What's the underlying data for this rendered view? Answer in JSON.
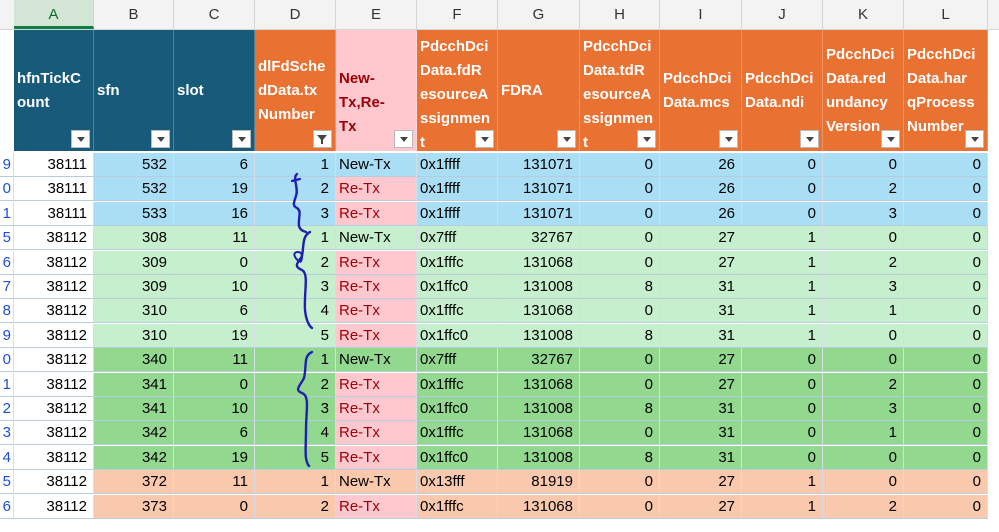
{
  "column_letters": [
    "A",
    "B",
    "C",
    "D",
    "E",
    "F",
    "G",
    "H",
    "I",
    "J",
    "K",
    "L"
  ],
  "active_column": "A",
  "headers": [
    {
      "text": "hfnTickC\nount",
      "style": "navy",
      "filtered": false
    },
    {
      "text": "sfn",
      "style": "navy",
      "filtered": false
    },
    {
      "text": "slot",
      "style": "navy",
      "filtered": false
    },
    {
      "text": "dlFdSche\ndData.tx\nNumber",
      "style": "orange",
      "filtered": true
    },
    {
      "text": "New-\nTx,Re-Tx",
      "style": "pink",
      "filtered": false
    },
    {
      "text": "PdcchDci\nData.fdR\nesourceA\nssignmen\nt",
      "style": "orange",
      "filtered": false
    },
    {
      "text": "FDRA",
      "style": "orange",
      "filtered": false
    },
    {
      "text": "PdcchDci\nData.tdR\nesourceA\nssignmen\nt",
      "style": "orange",
      "filtered": false
    },
    {
      "text": "PdcchDci\nData.mcs",
      "style": "orange",
      "filtered": false
    },
    {
      "text": "PdcchDci\nData.ndi",
      "style": "orange",
      "filtered": false
    },
    {
      "text": "PdcchDci\nData.red\nundancy\nVersion",
      "style": "orange",
      "filtered": false
    },
    {
      "text": "PdcchDci\nData.har\nqProcess\nNumber",
      "style": "orange",
      "filtered": false
    }
  ],
  "rows": [
    {
      "row_label": "9",
      "hfn": "38111",
      "sfn": "532",
      "slot": "6",
      "tx": "1",
      "type": "New-Tx",
      "fdra_hex": "0x1ffff",
      "fdra": "131071",
      "tdra": "0",
      "mcs": "26",
      "ndi": "0",
      "rv": "0",
      "harq": "0",
      "group_color": "#a9def5"
    },
    {
      "row_label": "0",
      "hfn": "38111",
      "sfn": "532",
      "slot": "19",
      "tx": "2",
      "type": "Re-Tx",
      "fdra_hex": "0x1ffff",
      "fdra": "131071",
      "tdra": "0",
      "mcs": "26",
      "ndi": "0",
      "rv": "2",
      "harq": "0",
      "group_color": "#a9def5"
    },
    {
      "row_label": "1",
      "hfn": "38111",
      "sfn": "533",
      "slot": "16",
      "tx": "3",
      "type": "Re-Tx",
      "fdra_hex": "0x1ffff",
      "fdra": "131071",
      "tdra": "0",
      "mcs": "26",
      "ndi": "0",
      "rv": "3",
      "harq": "0",
      "group_color": "#a9def5"
    },
    {
      "row_label": "5",
      "hfn": "38112",
      "sfn": "308",
      "slot": "11",
      "tx": "1",
      "type": "New-Tx",
      "fdra_hex": "0x7fff",
      "fdra": "32767",
      "tdra": "0",
      "mcs": "27",
      "ndi": "1",
      "rv": "0",
      "harq": "0",
      "group_color": "#c6efce"
    },
    {
      "row_label": "6",
      "hfn": "38112",
      "sfn": "309",
      "slot": "0",
      "tx": "2",
      "type": "Re-Tx",
      "fdra_hex": "0x1fffc",
      "fdra": "131068",
      "tdra": "0",
      "mcs": "27",
      "ndi": "1",
      "rv": "2",
      "harq": "0",
      "group_color": "#c6efce"
    },
    {
      "row_label": "7",
      "hfn": "38112",
      "sfn": "309",
      "slot": "10",
      "tx": "3",
      "type": "Re-Tx",
      "fdra_hex": "0x1ffc0",
      "fdra": "131008",
      "tdra": "8",
      "mcs": "31",
      "ndi": "1",
      "rv": "3",
      "harq": "0",
      "group_color": "#c6efce"
    },
    {
      "row_label": "8",
      "hfn": "38112",
      "sfn": "310",
      "slot": "6",
      "tx": "4",
      "type": "Re-Tx",
      "fdra_hex": "0x1fffc",
      "fdra": "131068",
      "tdra": "0",
      "mcs": "31",
      "ndi": "1",
      "rv": "1",
      "harq": "0",
      "group_color": "#c6efce"
    },
    {
      "row_label": "9",
      "hfn": "38112",
      "sfn": "310",
      "slot": "19",
      "tx": "5",
      "type": "Re-Tx",
      "fdra_hex": "0x1ffc0",
      "fdra": "131008",
      "tdra": "8",
      "mcs": "31",
      "ndi": "1",
      "rv": "0",
      "harq": "0",
      "group_color": "#c6efce"
    },
    {
      "row_label": "0",
      "hfn": "38112",
      "sfn": "340",
      "slot": "11",
      "tx": "1",
      "type": "New-Tx",
      "fdra_hex": "0x7fff",
      "fdra": "32767",
      "tdra": "0",
      "mcs": "27",
      "ndi": "0",
      "rv": "0",
      "harq": "0",
      "group_color": "#92d98f"
    },
    {
      "row_label": "1",
      "hfn": "38112",
      "sfn": "341",
      "slot": "0",
      "tx": "2",
      "type": "Re-Tx",
      "fdra_hex": "0x1fffc",
      "fdra": "131068",
      "tdra": "0",
      "mcs": "27",
      "ndi": "0",
      "rv": "2",
      "harq": "0",
      "group_color": "#92d98f"
    },
    {
      "row_label": "2",
      "hfn": "38112",
      "sfn": "341",
      "slot": "10",
      "tx": "3",
      "type": "Re-Tx",
      "fdra_hex": "0x1ffc0",
      "fdra": "131008",
      "tdra": "8",
      "mcs": "31",
      "ndi": "0",
      "rv": "3",
      "harq": "0",
      "group_color": "#92d98f"
    },
    {
      "row_label": "3",
      "hfn": "38112",
      "sfn": "342",
      "slot": "6",
      "tx": "4",
      "type": "Re-Tx",
      "fdra_hex": "0x1fffc",
      "fdra": "131068",
      "tdra": "0",
      "mcs": "31",
      "ndi": "0",
      "rv": "1",
      "harq": "0",
      "group_color": "#92d98f"
    },
    {
      "row_label": "4",
      "hfn": "38112",
      "sfn": "342",
      "slot": "19",
      "tx": "5",
      "type": "Re-Tx",
      "fdra_hex": "0x1ffc0",
      "fdra": "131008",
      "tdra": "8",
      "mcs": "31",
      "ndi": "0",
      "rv": "0",
      "harq": "0",
      "group_color": "#92d98f"
    },
    {
      "row_label": "5",
      "hfn": "38112",
      "sfn": "372",
      "slot": "11",
      "tx": "1",
      "type": "New-Tx",
      "fdra_hex": "0x13fff",
      "fdra": "81919",
      "tdra": "0",
      "mcs": "27",
      "ndi": "1",
      "rv": "0",
      "harq": "0",
      "group_color": "#f9c8ad"
    },
    {
      "row_label": "6",
      "hfn": "38112",
      "sfn": "373",
      "slot": "0",
      "tx": "2",
      "type": "Re-Tx",
      "fdra_hex": "0x1fffc",
      "fdra": "131068",
      "tdra": "0",
      "mcs": "27",
      "ndi": "1",
      "rv": "2",
      "harq": "0",
      "group_color": "#f9c8ad"
    }
  ],
  "colors": {
    "header_navy": "#185a7a",
    "header_orange": "#e97132",
    "header_pink": "#ffc7ce",
    "retx_fill": "#ffc7ce",
    "retx_text": "#9c0006",
    "row_number_text": "#1f4fd6",
    "handwriting_ink": "#1f1fb0"
  }
}
